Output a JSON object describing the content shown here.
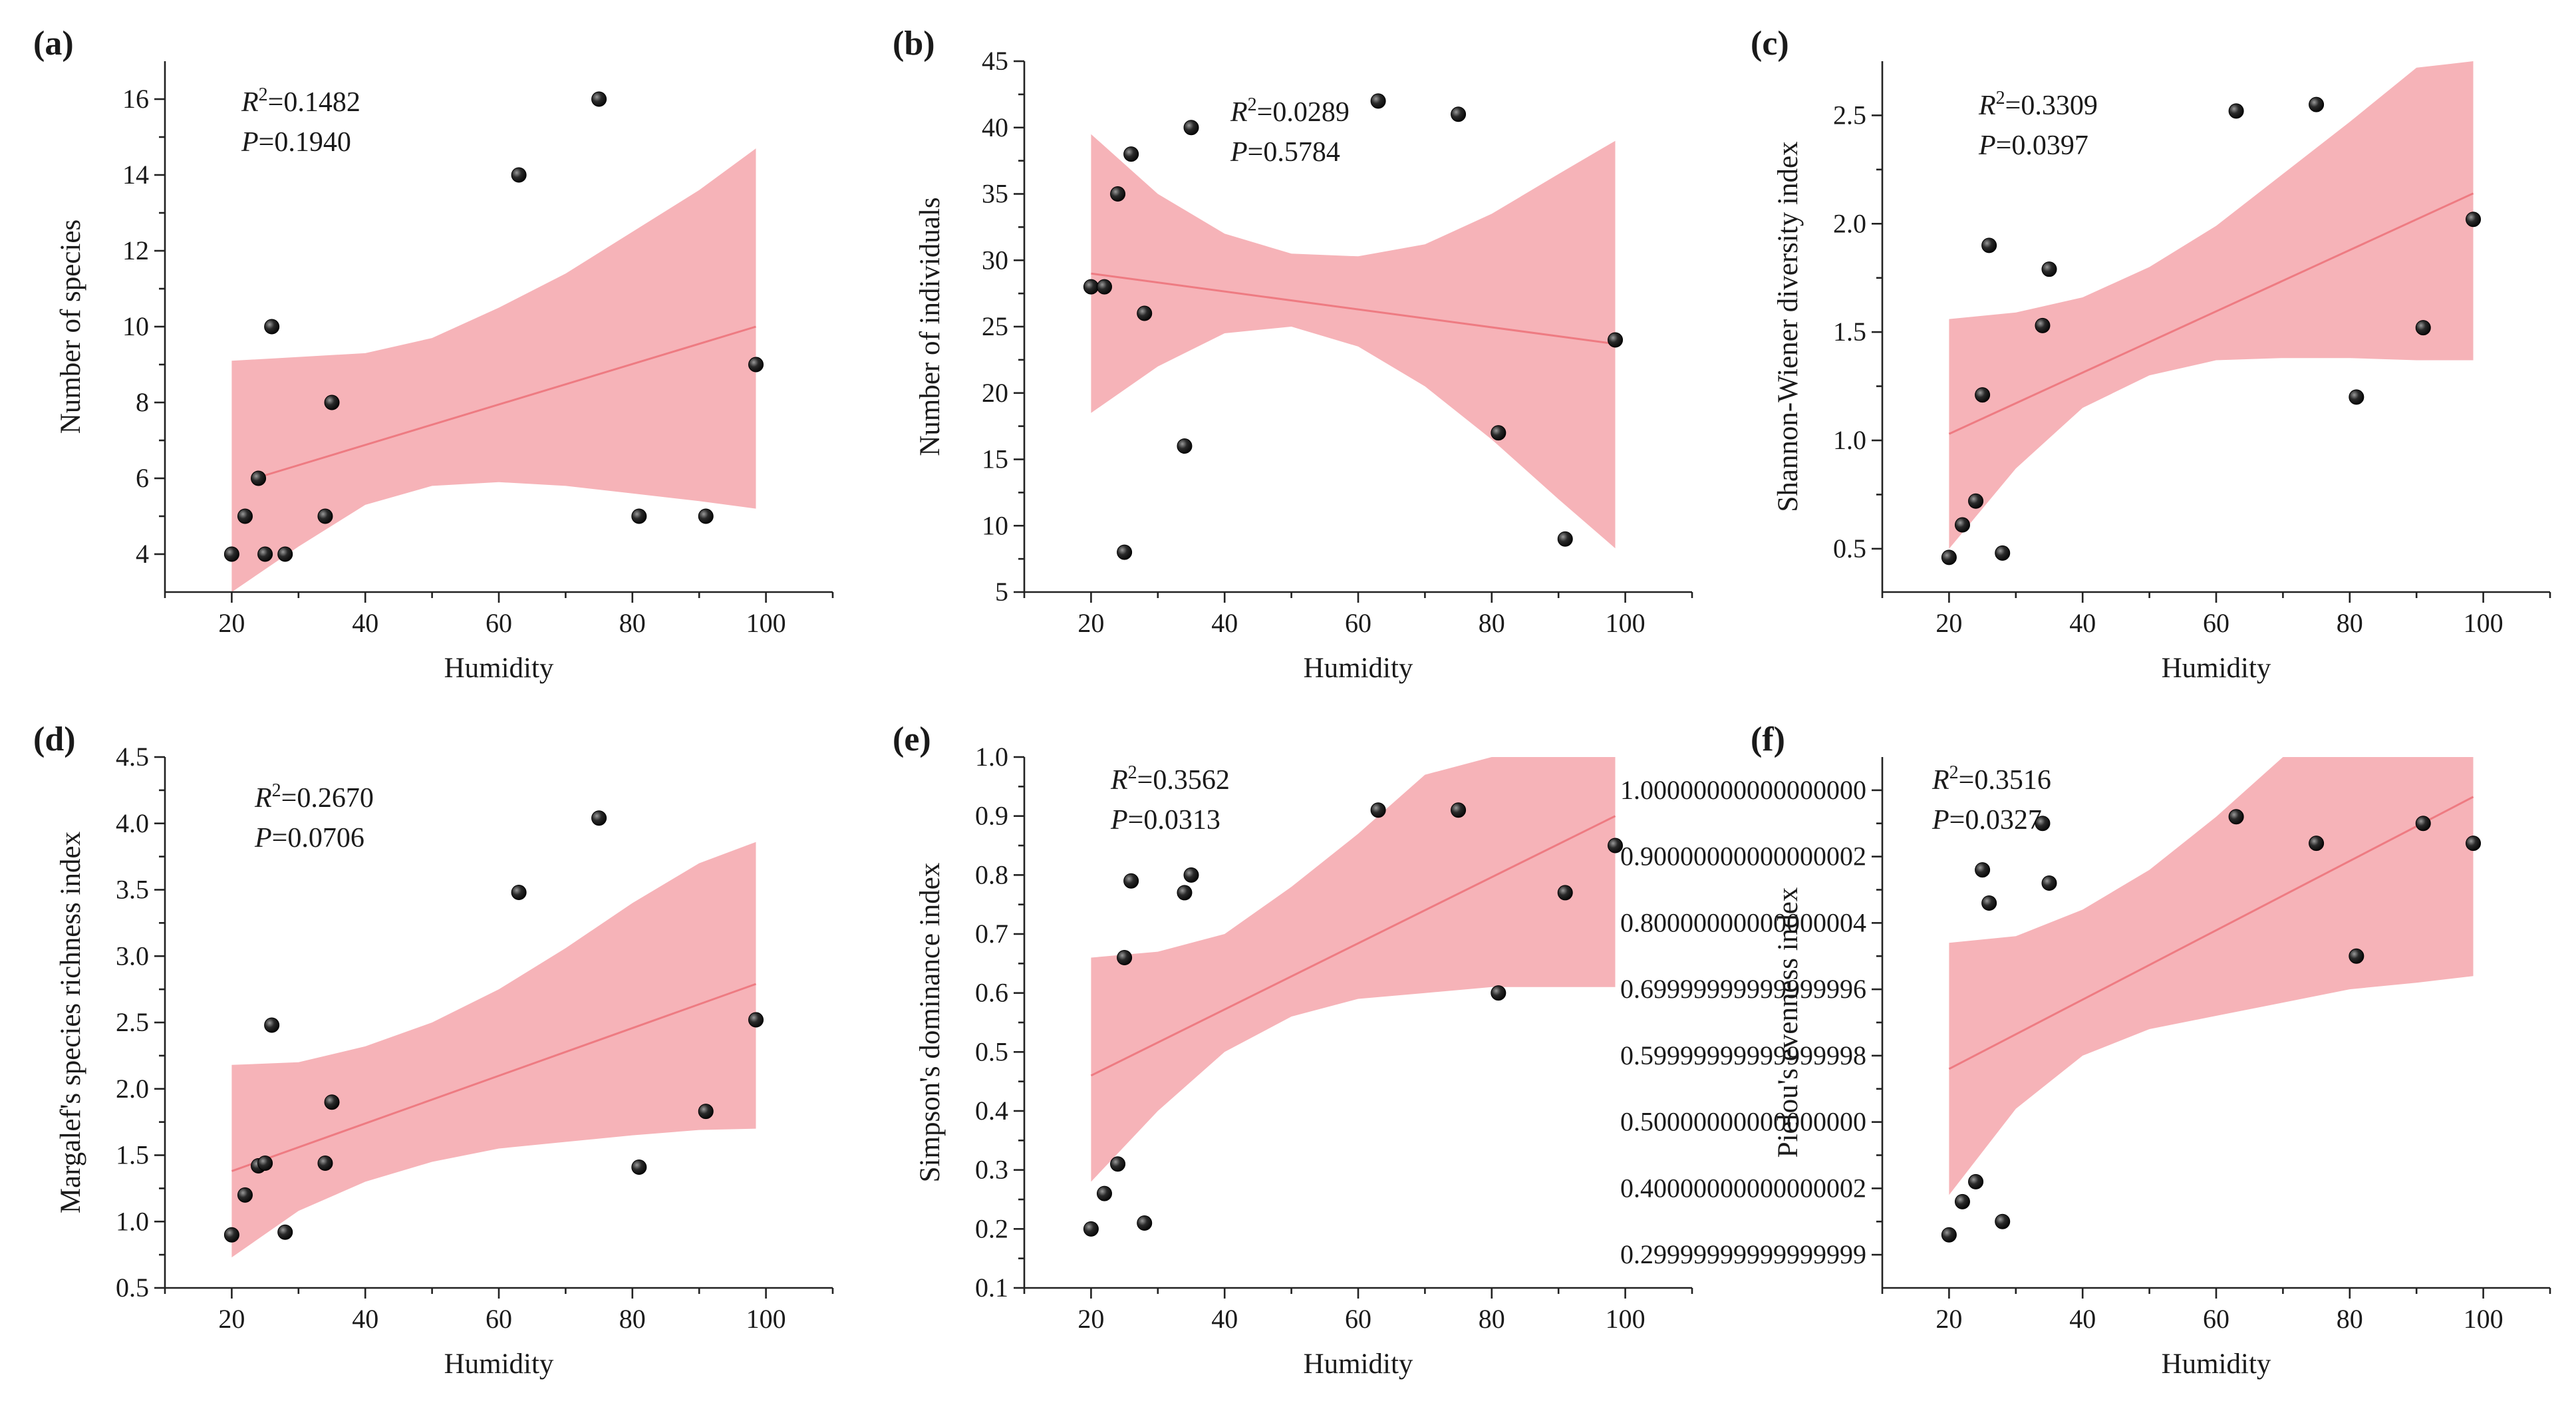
{
  "colors": {
    "ci_band": "#f4a6ac",
    "fit_line": "#ee7b82",
    "point": "#111111",
    "axis": "#222222"
  },
  "chart_data": [
    {
      "type": "scatter",
      "panel": "(a)",
      "xlabel": "Humidity",
      "ylabel": "Number of species",
      "xlim": [
        10,
        110
      ],
      "ylim": [
        3,
        17
      ],
      "xticks": [
        20,
        40,
        60,
        80,
        100
      ],
      "yticks": [
        4,
        6,
        8,
        10,
        12,
        14,
        16
      ],
      "r2_label": "=0.1482",
      "p_label": "=0.1940",
      "points": [
        [
          20,
          4
        ],
        [
          22,
          5
        ],
        [
          24,
          6
        ],
        [
          25,
          4
        ],
        [
          26,
          10
        ],
        [
          28,
          4
        ],
        [
          34,
          5
        ],
        [
          35,
          8
        ],
        [
          63,
          14
        ],
        [
          75,
          16
        ],
        [
          81,
          5
        ],
        [
          91,
          5
        ],
        [
          98.5,
          9
        ]
      ],
      "fit": [
        [
          23.5,
          6.0
        ],
        [
          98.5,
          10.0
        ]
      ],
      "ci": {
        "x": [
          20,
          30,
          40,
          50,
          60,
          70,
          80,
          90,
          98.5
        ],
        "upper": [
          9.1,
          9.2,
          9.3,
          9.7,
          10.5,
          11.4,
          12.5,
          13.6,
          14.7
        ],
        "lower": [
          3.0,
          4.2,
          5.3,
          5.8,
          5.9,
          5.8,
          5.6,
          5.4,
          5.2
        ]
      }
    },
    {
      "type": "scatter",
      "panel": "(b)",
      "xlabel": "Humidity",
      "ylabel": "Number of individuals",
      "xlim": [
        10,
        110
      ],
      "ylim": [
        5,
        45
      ],
      "xticks": [
        20,
        40,
        60,
        80,
        100
      ],
      "yticks": [
        5,
        10,
        15,
        20,
        25,
        30,
        35,
        40,
        45
      ],
      "r2_label": "=0.0289",
      "p_label": "=0.5784",
      "points": [
        [
          20,
          28
        ],
        [
          22,
          28
        ],
        [
          24,
          35
        ],
        [
          25,
          8
        ],
        [
          26,
          38
        ],
        [
          28,
          26
        ],
        [
          34,
          16
        ],
        [
          35,
          40
        ],
        [
          63,
          42
        ],
        [
          75,
          41
        ],
        [
          81,
          17
        ],
        [
          91,
          9
        ],
        [
          98.5,
          24
        ]
      ],
      "fit": [
        [
          20,
          29.0
        ],
        [
          98.5,
          23.7
        ]
      ],
      "ci": {
        "x": [
          20,
          30,
          40,
          50,
          60,
          70,
          80,
          90,
          98.5
        ],
        "upper": [
          39.5,
          35.0,
          32.0,
          30.5,
          30.3,
          31.2,
          33.5,
          36.5,
          39.0
        ],
        "lower": [
          18.5,
          22.0,
          24.5,
          25.0,
          23.5,
          20.5,
          16.5,
          12.0,
          8.3
        ]
      }
    },
    {
      "type": "scatter",
      "panel": "(c)",
      "xlabel": "Humidity",
      "ylabel": "Shannon-Wiener diversity index",
      "xlim": [
        10,
        110
      ],
      "ylim": [
        0.3,
        2.75
      ],
      "xticks": [
        20,
        40,
        60,
        80,
        100
      ],
      "yticks": [
        0.5,
        1.0,
        1.5,
        2.0,
        2.5
      ],
      "r2_label": "=0.3309",
      "p_label": "=0.0397",
      "points": [
        [
          20,
          0.46
        ],
        [
          22,
          0.61
        ],
        [
          24,
          0.72
        ],
        [
          25,
          1.21
        ],
        [
          26,
          1.9
        ],
        [
          28,
          0.48
        ],
        [
          34,
          1.53
        ],
        [
          35,
          1.79
        ],
        [
          63,
          2.52
        ],
        [
          75,
          2.55
        ],
        [
          81,
          1.2
        ],
        [
          91,
          1.52
        ],
        [
          98.5,
          2.02
        ]
      ],
      "fit": [
        [
          20,
          1.03
        ],
        [
          98.5,
          2.14
        ]
      ],
      "ci": {
        "x": [
          20,
          30,
          40,
          50,
          60,
          70,
          80,
          90,
          98.5
        ],
        "upper": [
          1.56,
          1.59,
          1.66,
          1.8,
          1.99,
          2.23,
          2.47,
          2.72,
          2.75
        ],
        "lower": [
          0.5,
          0.87,
          1.15,
          1.3,
          1.37,
          1.38,
          1.38,
          1.37,
          1.37
        ]
      }
    },
    {
      "type": "scatter",
      "panel": "(d)",
      "xlabel": "Humidity",
      "ylabel": "Margalef's species richness index",
      "xlim": [
        10,
        110
      ],
      "ylim": [
        0.5,
        4.5
      ],
      "xticks": [
        20,
        40,
        60,
        80,
        100
      ],
      "yticks": [
        0.5,
        1.0,
        1.5,
        2.0,
        2.5,
        3.0,
        3.5,
        4.0,
        4.5
      ],
      "r2_label": "=0.2670",
      "p_label": "=0.0706",
      "points": [
        [
          20,
          0.9
        ],
        [
          22,
          1.2
        ],
        [
          24,
          1.42
        ],
        [
          25,
          1.44
        ],
        [
          26,
          2.48
        ],
        [
          28,
          0.92
        ],
        [
          34,
          1.44
        ],
        [
          35,
          1.9
        ],
        [
          63,
          3.48
        ],
        [
          75,
          4.04
        ],
        [
          81,
          1.41
        ],
        [
          91,
          1.83
        ],
        [
          98.5,
          2.52
        ]
      ],
      "fit": [
        [
          20,
          1.38
        ],
        [
          98.5,
          2.79
        ]
      ],
      "ci": {
        "x": [
          20,
          30,
          40,
          50,
          60,
          70,
          80,
          90,
          98.5
        ],
        "upper": [
          2.18,
          2.2,
          2.32,
          2.5,
          2.75,
          3.06,
          3.4,
          3.7,
          3.86
        ],
        "lower": [
          0.73,
          1.08,
          1.3,
          1.45,
          1.55,
          1.6,
          1.65,
          1.69,
          1.7
        ]
      }
    },
    {
      "type": "scatter",
      "panel": "(e)",
      "xlabel": "Humidity",
      "ylabel": "Simpson's dominance index",
      "xlim": [
        10,
        110
      ],
      "ylim": [
        0.1,
        1.0
      ],
      "xticks": [
        20,
        40,
        60,
        80,
        100
      ],
      "yticks": [
        0.1,
        0.2,
        0.3,
        0.4,
        0.5,
        0.6,
        0.7,
        0.8,
        0.9,
        1.0
      ],
      "r2_label": "=0.3562",
      "p_label": "=0.0313",
      "points": [
        [
          20,
          0.2
        ],
        [
          22,
          0.26
        ],
        [
          24,
          0.31
        ],
        [
          25,
          0.66
        ],
        [
          26,
          0.79
        ],
        [
          28,
          0.21
        ],
        [
          34,
          0.77
        ],
        [
          35,
          0.8
        ],
        [
          63,
          0.91
        ],
        [
          75,
          0.91
        ],
        [
          81,
          0.6
        ],
        [
          91,
          0.77
        ],
        [
          98.5,
          0.85
        ]
      ],
      "fit": [
        [
          20,
          0.46
        ],
        [
          98.5,
          0.9
        ]
      ],
      "ci": {
        "x": [
          20,
          30,
          40,
          50,
          60,
          70,
          80,
          90,
          98.5
        ],
        "upper": [
          0.66,
          0.67,
          0.7,
          0.78,
          0.87,
          0.97,
          1.0,
          1.0,
          1.0
        ],
        "lower": [
          0.28,
          0.4,
          0.5,
          0.56,
          0.59,
          0.6,
          0.61,
          0.61,
          0.61
        ]
      }
    },
    {
      "type": "scatter",
      "panel": "(f)",
      "xlabel": "Humidity",
      "ylabel": "Pielou's evenness index",
      "xlim": [
        10,
        110
      ],
      "ylim": [
        0.25,
        1.05
      ],
      "xticks": [
        20,
        40,
        60,
        80,
        100
      ],
      "yticks": [
        0.3,
        0.4,
        0.5,
        0.6,
        0.7,
        0.8,
        0.9,
        1.0
      ],
      "r2_label": "=0.3516",
      "p_label": "=0.0327",
      "points": [
        [
          20,
          0.33
        ],
        [
          22,
          0.38
        ],
        [
          24,
          0.41
        ],
        [
          25,
          0.88
        ],
        [
          26,
          0.83
        ],
        [
          28,
          0.35
        ],
        [
          34,
          0.95
        ],
        [
          35,
          0.86
        ],
        [
          63,
          0.96
        ],
        [
          75,
          0.92
        ],
        [
          81,
          0.75
        ],
        [
          91,
          0.95
        ],
        [
          98.5,
          0.92
        ]
      ],
      "fit": [
        [
          20,
          0.58
        ],
        [
          98.5,
          0.99
        ]
      ],
      "ci": {
        "x": [
          20,
          30,
          40,
          50,
          60,
          70,
          80,
          90,
          98.5
        ],
        "upper": [
          0.77,
          0.78,
          0.82,
          0.88,
          0.96,
          1.05,
          1.05,
          1.05,
          1.05
        ],
        "lower": [
          0.39,
          0.52,
          0.6,
          0.64,
          0.66,
          0.68,
          0.7,
          0.71,
          0.72
        ]
      }
    }
  ]
}
